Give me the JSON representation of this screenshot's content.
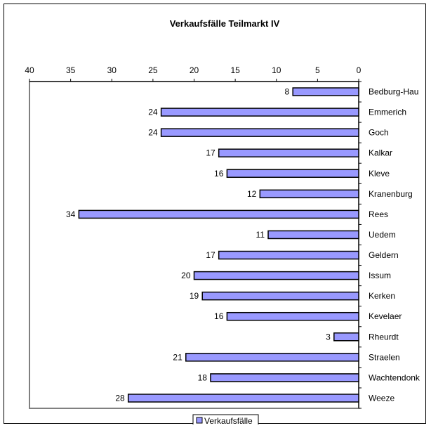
{
  "chart_data": {
    "type": "bar",
    "orientation": "horizontal",
    "x_axis_reversed": true,
    "title": "Verkaufsfälle Teilmarkt IV",
    "xlabel": "",
    "ylabel": "",
    "xlim": [
      0,
      40
    ],
    "x_ticks": [
      "40",
      "35",
      "30",
      "25",
      "20",
      "15",
      "10",
      "5",
      "0"
    ],
    "x_tick_values": [
      40,
      35,
      30,
      25,
      20,
      15,
      10,
      5,
      0
    ],
    "categories": [
      "Bedburg-Hau",
      "Emmerich",
      "Goch",
      "Kalkar",
      "Kleve",
      "Kranenburg",
      "Rees",
      "Uedem",
      "Geldern",
      "Issum",
      "Kerken",
      "Kevelaer",
      "Rheurdt",
      "Straelen",
      "Wachtendonk",
      "Weeze"
    ],
    "series": [
      {
        "name": "Verkaufsfälle",
        "values": [
          8,
          24,
          24,
          17,
          16,
          12,
          34,
          11,
          17,
          20,
          19,
          16,
          3,
          21,
          18,
          28
        ],
        "data_labels": [
          "8",
          "24",
          "24",
          "17",
          "16",
          "12",
          "34",
          "11",
          "17",
          "20",
          "19",
          "16",
          "3",
          "21",
          "18",
          "28"
        ],
        "color": "#9999FF"
      }
    ],
    "grid": false,
    "legend_position": "bottom"
  }
}
